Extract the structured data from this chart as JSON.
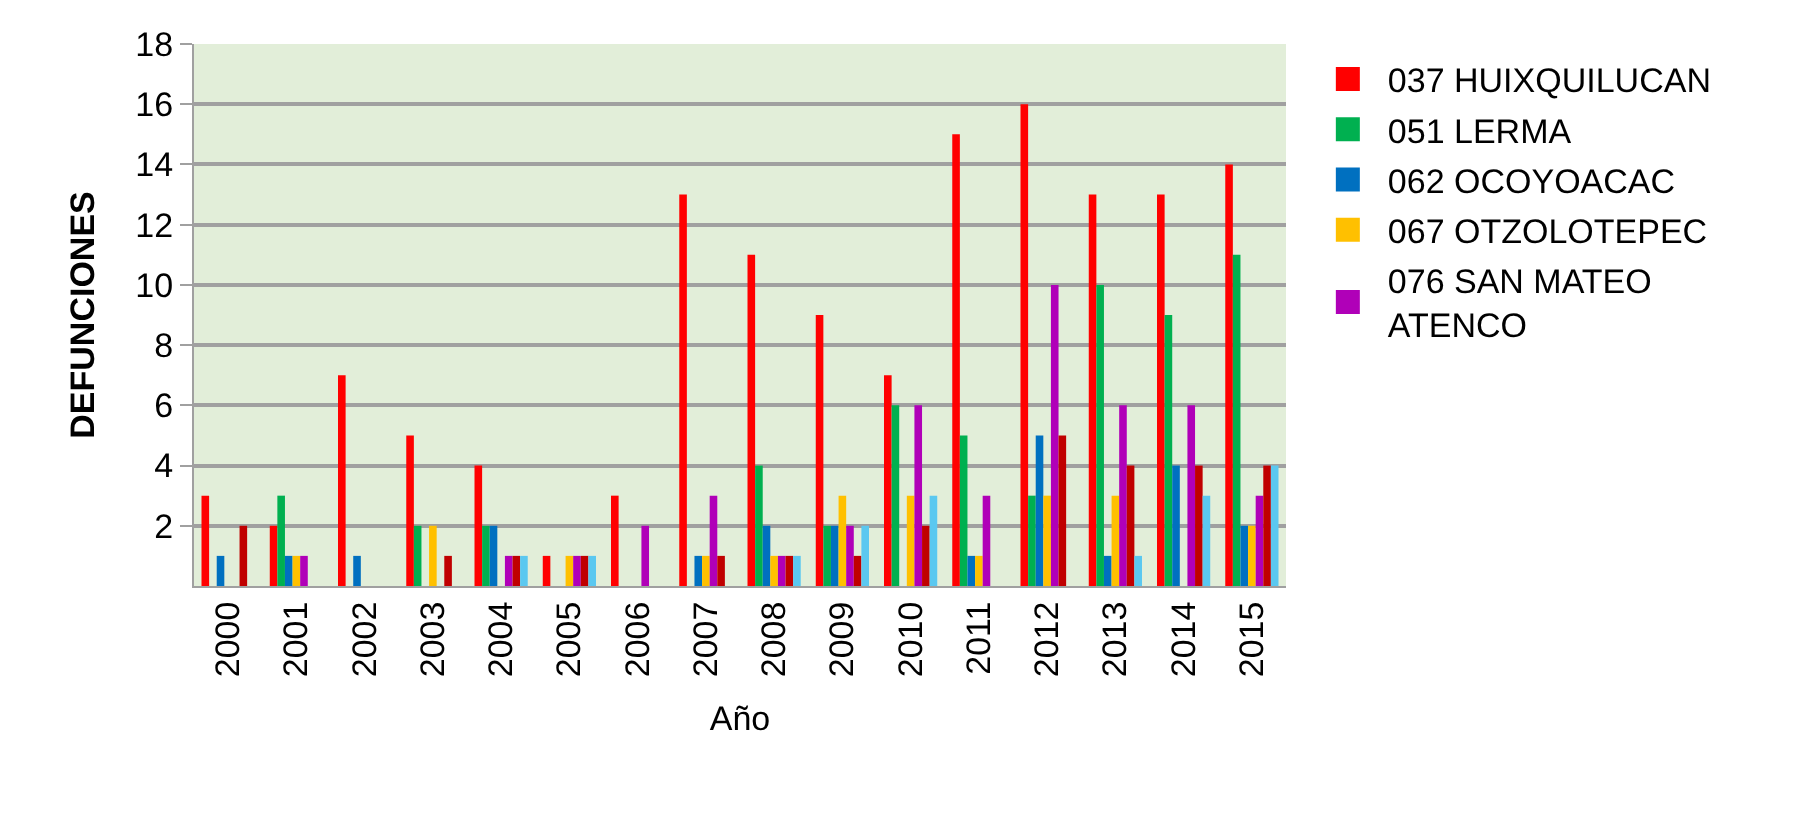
{
  "chart_data": {
    "type": "bar",
    "xlabel": "Año",
    "ylabel": "DEFUNCIONES",
    "categories": [
      "2000",
      "2001",
      "2002",
      "2003",
      "2004",
      "2005",
      "2006",
      "2007",
      "2008",
      "2009",
      "2010",
      "2011",
      "2012",
      "2013",
      "2014",
      "2015"
    ],
    "series": [
      {
        "name": "037 HUIXQUILUCAN",
        "color": "#ff0000",
        "values": [
          3,
          2,
          7,
          5,
          4,
          1,
          3,
          13,
          11,
          9,
          7,
          15,
          16,
          13,
          13,
          14
        ]
      },
      {
        "name": "051 LERMA",
        "color": "#00b050",
        "values": [
          0,
          3,
          0,
          2,
          2,
          0,
          0,
          0,
          4,
          2,
          6,
          5,
          3,
          10,
          9,
          11
        ]
      },
      {
        "name": "062 OCOYOACAC",
        "color": "#0070c0",
        "values": [
          1,
          1,
          1,
          0,
          2,
          0,
          0,
          1,
          2,
          2,
          0,
          1,
          5,
          1,
          4,
          2
        ]
      },
      {
        "name": "067 OTZOLOTEPEC",
        "color": "#ffc000",
        "values": [
          0,
          1,
          0,
          2,
          0,
          1,
          0,
          1,
          1,
          3,
          3,
          1,
          3,
          3,
          0,
          2
        ]
      },
      {
        "name": "076 SAN MATEO ATENCO",
        "color": "#b000b8",
        "values": [
          0,
          1,
          0,
          0,
          1,
          1,
          2,
          3,
          1,
          2,
          6,
          3,
          10,
          6,
          6,
          3
        ]
      },
      {
        "color": "#c00000",
        "values": [
          2,
          0,
          0,
          1,
          1,
          1,
          0,
          1,
          1,
          1,
          2,
          0,
          5,
          4,
          4,
          4
        ]
      },
      {
        "color": "#5bc8f0",
        "values": [
          0,
          0,
          0,
          0,
          1,
          1,
          0,
          0,
          1,
          2,
          3,
          0,
          0,
          1,
          3,
          4
        ]
      }
    ],
    "ylim": [
      0,
      18
    ],
    "yticks": [
      2,
      4,
      6,
      8,
      10,
      12,
      14,
      16,
      18
    ],
    "grid": "y",
    "legend": "right"
  }
}
